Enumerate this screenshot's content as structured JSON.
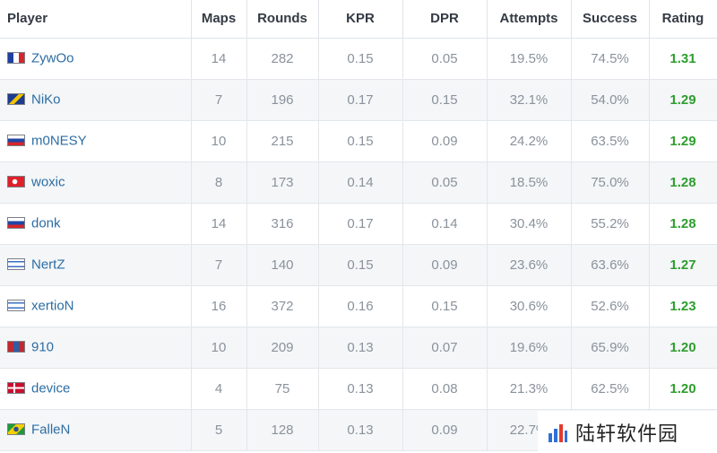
{
  "table": {
    "headers": {
      "player": "Player",
      "maps": "Maps",
      "rounds": "Rounds",
      "kpr": "KPR",
      "dpr": "DPR",
      "attempts": "Attempts",
      "success": "Success",
      "rating": "Rating"
    },
    "rows": [
      {
        "flag": "flag-france-icon",
        "name": "ZywOo",
        "maps": "14",
        "rounds": "282",
        "kpr": "0.15",
        "dpr": "0.05",
        "attempts": "19.5%",
        "success": "74.5%",
        "rating": "1.31"
      },
      {
        "flag": "flag-bosnia-icon",
        "name": "NiKo",
        "maps": "7",
        "rounds": "196",
        "kpr": "0.17",
        "dpr": "0.15",
        "attempts": "32.1%",
        "success": "54.0%",
        "rating": "1.29"
      },
      {
        "flag": "flag-russia-icon",
        "name": "m0NESY",
        "maps": "10",
        "rounds": "215",
        "kpr": "0.15",
        "dpr": "0.09",
        "attempts": "24.2%",
        "success": "63.5%",
        "rating": "1.29"
      },
      {
        "flag": "flag-turkey-icon",
        "name": "woxic",
        "maps": "8",
        "rounds": "173",
        "kpr": "0.14",
        "dpr": "0.05",
        "attempts": "18.5%",
        "success": "75.0%",
        "rating": "1.28"
      },
      {
        "flag": "flag-russia-icon",
        "name": "donk",
        "maps": "14",
        "rounds": "316",
        "kpr": "0.17",
        "dpr": "0.14",
        "attempts": "30.4%",
        "success": "55.2%",
        "rating": "1.28"
      },
      {
        "flag": "flag-israel-icon",
        "name": "NertZ",
        "maps": "7",
        "rounds": "140",
        "kpr": "0.15",
        "dpr": "0.09",
        "attempts": "23.6%",
        "success": "63.6%",
        "rating": "1.27"
      },
      {
        "flag": "flag-israel-icon",
        "name": "xertioN",
        "maps": "16",
        "rounds": "372",
        "kpr": "0.16",
        "dpr": "0.15",
        "attempts": "30.6%",
        "success": "52.6%",
        "rating": "1.23"
      },
      {
        "flag": "flag-mongolia-icon",
        "name": "910",
        "maps": "10",
        "rounds": "209",
        "kpr": "0.13",
        "dpr": "0.07",
        "attempts": "19.6%",
        "success": "65.9%",
        "rating": "1.20"
      },
      {
        "flag": "flag-denmark-icon",
        "name": "device",
        "maps": "4",
        "rounds": "75",
        "kpr": "0.13",
        "dpr": "0.08",
        "attempts": "21.3%",
        "success": "62.5%",
        "rating": "1.20"
      },
      {
        "flag": "flag-brazil-icon",
        "name": "FalleN",
        "maps": "5",
        "rounds": "128",
        "kpr": "0.13",
        "dpr": "0.09",
        "attempts": "22.7%",
        "success": "",
        "rating": ""
      }
    ]
  },
  "watermark": {
    "text": "陆轩软件园",
    "logo_icon": "watermark-logo-icon"
  },
  "colors": {
    "header_text": "#333a44",
    "cell_text": "#8a929c",
    "player_link": "#2d6da3",
    "rating_green": "#2e9e2e",
    "stripe": "#f4f6f8",
    "border": "#e3e6ea"
  }
}
